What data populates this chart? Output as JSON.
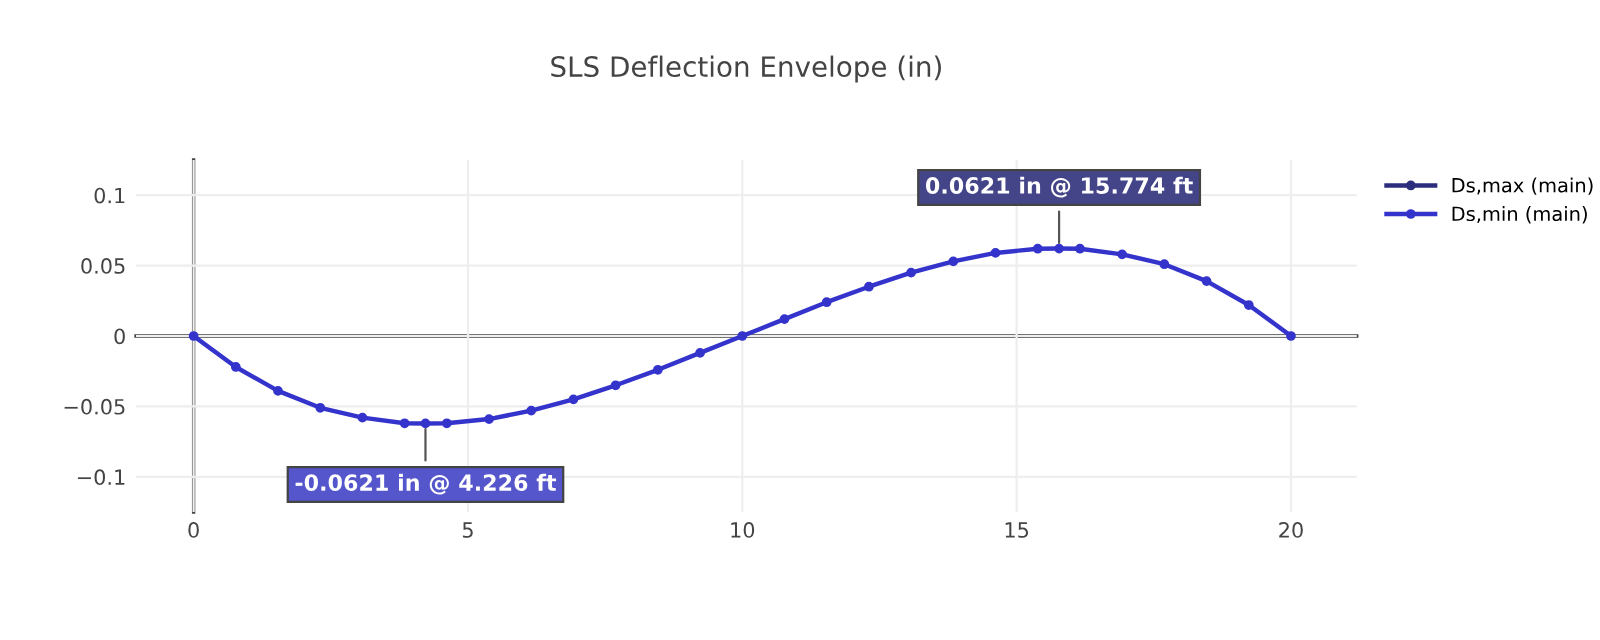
{
  "chart_data": {
    "type": "line",
    "title": "SLS Deflection Envelope (in)",
    "x": [
      0,
      0.769,
      1.538,
      2.308,
      3.077,
      3.846,
      4.226,
      4.615,
      5.385,
      6.154,
      6.923,
      7.692,
      8.462,
      9.231,
      10,
      10.769,
      11.538,
      12.308,
      13.077,
      13.846,
      14.615,
      15.385,
      15.774,
      16.154,
      16.923,
      17.692,
      18.462,
      19.231,
      20
    ],
    "series": [
      {
        "name": "Ds,max (main)",
        "color": "#2d2d7d",
        "values": [
          null,
          null,
          null,
          null,
          null,
          null,
          null,
          null,
          null,
          null,
          null,
          null,
          null,
          null,
          null,
          null,
          null,
          null,
          null,
          null,
          null,
          null,
          null,
          null,
          null,
          null,
          null,
          null,
          null
        ]
      },
      {
        "name": "Ds,min (main)",
        "color": "#3434cc",
        "values": [
          0,
          -0.022,
          -0.039,
          -0.051,
          -0.058,
          -0.062,
          -0.0621,
          -0.062,
          -0.059,
          -0.053,
          -0.045,
          -0.035,
          -0.024,
          -0.012,
          0,
          0.012,
          0.024,
          0.035,
          0.045,
          0.053,
          0.059,
          0.062,
          0.0621,
          0.062,
          0.058,
          0.051,
          0.039,
          0.022,
          0
        ]
      }
    ],
    "xlim": [
      -1.05,
      21.2
    ],
    "xticks": [
      0,
      5,
      10,
      15,
      20
    ],
    "ylim": [
      -0.125,
      0.125
    ],
    "yticks": [
      {
        "value": -0.1,
        "label": "−0.1"
      },
      {
        "value": -0.05,
        "label": "−0.05"
      },
      0,
      0.05,
      0.1
    ],
    "annotations": [
      {
        "text": "-0.0621 in @ 4.226 ft",
        "x": 4.226,
        "y": -0.0621
      },
      {
        "text": "0.0621 in @ 15.774 ft",
        "x": 15.774,
        "y": 0.0621
      }
    ],
    "grid": true,
    "legend": "top right",
    "marker": "circle",
    "line_style": "solid"
  }
}
